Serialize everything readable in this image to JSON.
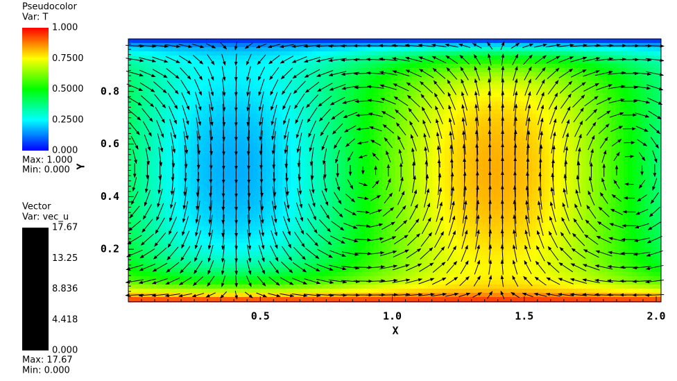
{
  "pseudocolor_legend": {
    "title": "Pseudocolor",
    "var": "Var: T",
    "labels": [
      "1.000",
      "0.7500",
      "0.5000",
      "0.2500",
      "0.000"
    ],
    "max": "Max:  1.000",
    "min": "Min:  0.000"
  },
  "vector_legend": {
    "title": "Vector",
    "var": "Var: vec_u",
    "labels": [
      "17.67",
      "13.25",
      "8.836",
      "4.418",
      "0.000"
    ],
    "max": "Max:  17.67",
    "min": "Min:  0.000"
  },
  "axes": {
    "x_label": "X",
    "y_label": "Y",
    "x_ticks": [
      "0.5",
      "1.0",
      "1.5",
      "2.0"
    ],
    "y_ticks": [
      "0.2",
      "0.4",
      "0.6",
      "0.8"
    ]
  }
}
